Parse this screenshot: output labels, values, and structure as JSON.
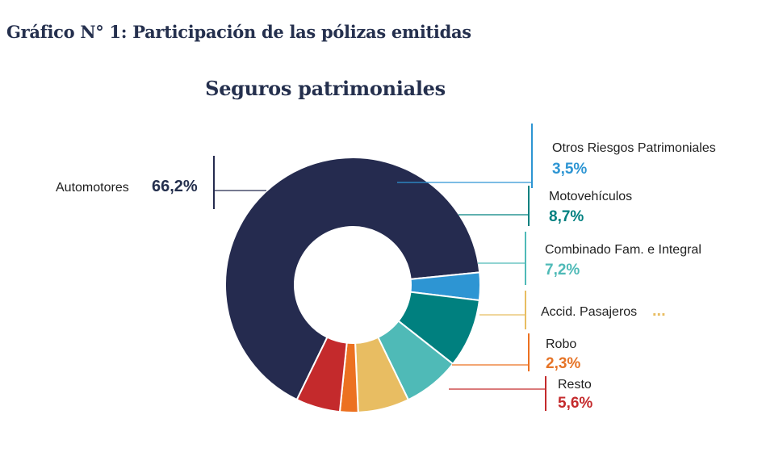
{
  "header": {
    "title": "Gráfico N° 1: Participación de las pólizas emitidas"
  },
  "chart_data": {
    "type": "pie",
    "title": "Seguros patrimoniales",
    "categories": [
      "Automotores",
      "Otros Riesgos Patrimoniales",
      "Motovehículos",
      "Combinado Fam. e Integral",
      "Accid. Pasajeros",
      "Robo",
      "Resto"
    ],
    "values": [
      66.2,
      3.5,
      8.7,
      7.2,
      6.5,
      2.3,
      5.6
    ],
    "value_labels": [
      "66,2%",
      "3,5%",
      "8,7%",
      "7,2%",
      "...",
      "2,3%",
      "5,6%"
    ],
    "colors": [
      "#252b4f",
      "#2d95d3",
      "#00807f",
      "#4fbab7",
      "#e8bd62",
      "#ec7121",
      "#c42a2c"
    ],
    "label_colors": [
      "#25304e",
      "#2d95d3",
      "#008080",
      "#4fbab7",
      "#e8bd62",
      "#e67427",
      "#c42a2c"
    ],
    "legend": "right"
  }
}
